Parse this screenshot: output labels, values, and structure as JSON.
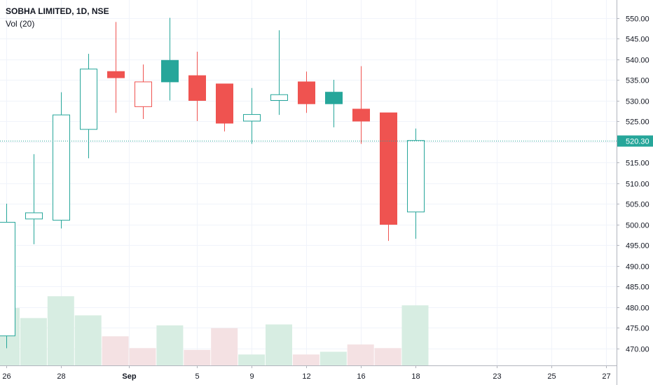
{
  "chart_data": {
    "type": "candlestick",
    "title": "SOBHA LIMITED, 1D, NSE",
    "volume_label": "Vol (20)",
    "last_price_label": "520.30",
    "last_price": 520.3,
    "colors": {
      "up": "#26a69a",
      "down": "#ef5350",
      "up_vol": "#d7ede2",
      "down_vol": "#f4e1e3",
      "price_line": "#26a69a"
    },
    "ylim": [
      466,
      553
    ],
    "y_ticks": [
      "470.00",
      "475.00",
      "480.00",
      "485.00",
      "490.00",
      "495.00",
      "500.00",
      "505.00",
      "510.00",
      "515.00",
      "520.00",
      "525.00",
      "530.00",
      "535.00",
      "540.00",
      "545.00",
      "550.00"
    ],
    "x_ticks": [
      {
        "label": "26",
        "slot": 0
      },
      {
        "label": "28",
        "slot": 2
      },
      {
        "label": "Sep",
        "slot": 4.5
      },
      {
        "label": "5",
        "slot": 7
      },
      {
        "label": "9",
        "slot": 9
      },
      {
        "label": "12",
        "slot": 11
      },
      {
        "label": "16",
        "slot": 13
      },
      {
        "label": "18",
        "slot": 15
      },
      {
        "label": "23",
        "slot": 18
      },
      {
        "label": "25",
        "slot": 20
      },
      {
        "label": "27",
        "slot": 22
      }
    ],
    "candles": [
      {
        "open": 473.0,
        "high": 505.0,
        "low": 470.0,
        "close": 500.5,
        "volume": 0.63,
        "style": "hollow"
      },
      {
        "open": 501.3,
        "high": 517.0,
        "low": 495.2,
        "close": 502.8,
        "volume": 0.52,
        "style": "hollow"
      },
      {
        "open": 501.0,
        "high": 532.0,
        "low": 499.0,
        "close": 526.5,
        "volume": 0.76,
        "style": "hollow"
      },
      {
        "open": 523.0,
        "high": 541.3,
        "low": 516.0,
        "close": 537.6,
        "volume": 0.55,
        "style": "hollow"
      },
      {
        "open": 537.0,
        "high": 549.0,
        "low": 527.0,
        "close": 535.5,
        "volume": 0.32,
        "style": "filled"
      },
      {
        "open": 534.5,
        "high": 538.7,
        "low": 525.5,
        "close": 528.5,
        "volume": 0.19,
        "style": "hollow"
      },
      {
        "open": 534.5,
        "high": 550.0,
        "low": 530.0,
        "close": 539.7,
        "volume": 0.44,
        "style": "filled"
      },
      {
        "open": 536.0,
        "high": 541.8,
        "low": 525.0,
        "close": 530.0,
        "volume": 0.17,
        "style": "filled"
      },
      {
        "open": 534.0,
        "high": 534.0,
        "low": 522.5,
        "close": 524.5,
        "volume": 0.41,
        "style": "filled"
      },
      {
        "open": 525.0,
        "high": 533.0,
        "low": 519.5,
        "close": 526.6,
        "volume": 0.12,
        "style": "hollow"
      },
      {
        "open": 530.0,
        "high": 547.0,
        "low": 526.5,
        "close": 531.4,
        "volume": 0.45,
        "style": "hollow"
      },
      {
        "open": 534.5,
        "high": 537.0,
        "low": 527.0,
        "close": 529.2,
        "volume": 0.12,
        "style": "filled"
      },
      {
        "open": 529.2,
        "high": 535.0,
        "low": 523.5,
        "close": 532.0,
        "volume": 0.15,
        "style": "filled"
      },
      {
        "open": 527.9,
        "high": 538.3,
        "low": 519.5,
        "close": 525.0,
        "volume": 0.23,
        "style": "filled"
      },
      {
        "open": 527.0,
        "high": 527.0,
        "low": 496.0,
        "close": 500.0,
        "volume": 0.19,
        "style": "filled"
      },
      {
        "open": 503.0,
        "high": 523.2,
        "low": 496.5,
        "close": 520.3,
        "volume": 0.66,
        "style": "hollow"
      }
    ]
  }
}
